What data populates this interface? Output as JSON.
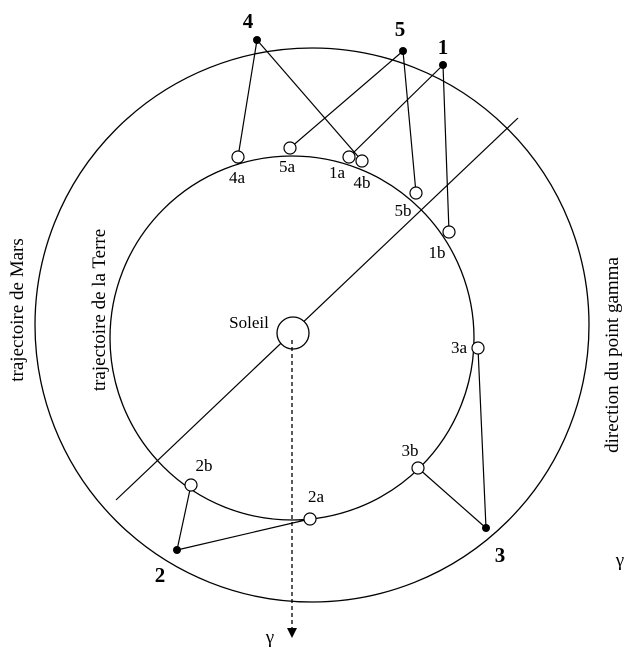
{
  "labels": {
    "sun": "Soleil",
    "mars_trajectory": "trajectoire de Mars",
    "earth_trajectory": "trajectoire de la Terre",
    "gamma_direction": "direction du point gamma",
    "gamma": "γ",
    "gamma_edge": "γ"
  },
  "mars_points": [
    "1",
    "2",
    "3",
    "4",
    "5"
  ],
  "earth_points": [
    "1a",
    "1b",
    "2a",
    "2b",
    "3a",
    "3b",
    "4a",
    "4b",
    "5a",
    "5b"
  ]
}
